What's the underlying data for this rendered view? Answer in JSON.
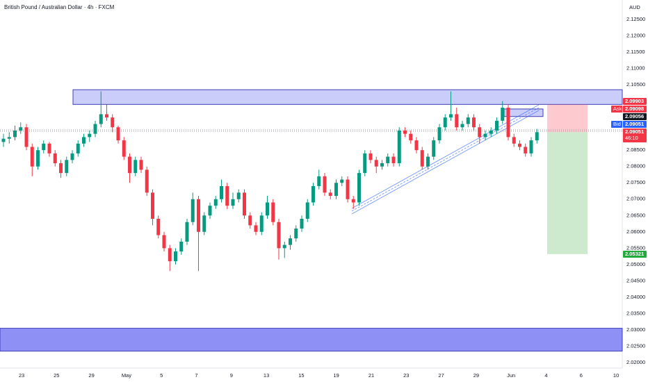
{
  "chart_data": {
    "type": "candlestick",
    "title": "British Pound / Australian Dollar · 4h · FXCM",
    "currency": "AUD",
    "up_color": "#089981",
    "down_color": "#f23645",
    "grid": false,
    "ylim": [
      2.02,
      2.125
    ],
    "yticks": [
      {
        "value": 2.125,
        "label": "2.12500"
      },
      {
        "value": 2.12,
        "label": "2.12000"
      },
      {
        "value": 2.115,
        "label": "2.11500"
      },
      {
        "value": 2.11,
        "label": "2.11000"
      },
      {
        "value": 2.105,
        "label": "2.10500"
      },
      {
        "value": 2.085,
        "label": "2.08500"
      },
      {
        "value": 2.08,
        "label": "2.08000"
      },
      {
        "value": 2.075,
        "label": "2.07500"
      },
      {
        "value": 2.07,
        "label": "2.07000"
      },
      {
        "value": 2.065,
        "label": "2.06500"
      },
      {
        "value": 2.06,
        "label": "2.06000"
      },
      {
        "value": 2.055,
        "label": "2.05500"
      },
      {
        "value": 2.05,
        "label": "2.05000"
      },
      {
        "value": 2.045,
        "label": "2.04500"
      },
      {
        "value": 2.04,
        "label": "2.04000"
      },
      {
        "value": 2.035,
        "label": "2.03500"
      },
      {
        "value": 2.03,
        "label": "2.03000"
      },
      {
        "value": 2.025,
        "label": "2.02500"
      },
      {
        "value": 2.02,
        "label": "2.02000"
      }
    ],
    "x_labels": [
      "23",
      "25",
      "29",
      "May",
      "5",
      "7",
      "9",
      "13",
      "15",
      "19",
      "21",
      "23",
      "27",
      "29",
      "Jun",
      "4",
      "6",
      "10"
    ],
    "candles": [
      [
        2.0875,
        2.09,
        2.086,
        2.0885
      ],
      [
        2.0885,
        2.0905,
        2.087,
        2.089
      ],
      [
        2.089,
        2.0925,
        2.088,
        2.091
      ],
      [
        2.091,
        2.0935,
        2.09,
        2.092
      ],
      [
        2.092,
        2.093,
        2.085,
        2.086
      ],
      [
        2.086,
        2.087,
        2.077,
        2.08
      ],
      [
        2.08,
        2.086,
        2.079,
        2.085
      ],
      [
        2.085,
        2.088,
        2.084,
        2.087
      ],
      [
        2.087,
        2.0875,
        2.083,
        2.084
      ],
      [
        2.084,
        2.085,
        2.08,
        2.081
      ],
      [
        2.081,
        2.082,
        2.0765,
        2.078
      ],
      [
        2.078,
        2.083,
        2.077,
        2.082
      ],
      [
        2.082,
        2.085,
        2.081,
        2.084
      ],
      [
        2.084,
        2.088,
        2.083,
        2.087
      ],
      [
        2.087,
        2.09,
        2.086,
        2.089
      ],
      [
        2.089,
        2.091,
        2.0875,
        2.09
      ],
      [
        2.09,
        2.094,
        2.089,
        2.093
      ],
      [
        2.093,
        2.103,
        2.092,
        2.096
      ],
      [
        2.096,
        2.099,
        2.094,
        2.095
      ],
      [
        2.095,
        2.096,
        2.0905,
        2.092
      ],
      [
        2.092,
        2.0925,
        2.087,
        2.088
      ],
      [
        2.088,
        2.089,
        2.082,
        2.083
      ],
      [
        2.083,
        2.084,
        2.075,
        2.078
      ],
      [
        2.078,
        2.083,
        2.077,
        2.082
      ],
      [
        2.082,
        2.083,
        2.078,
        2.079
      ],
      [
        2.079,
        2.08,
        2.071,
        2.072
      ],
      [
        2.072,
        2.073,
        2.062,
        2.064
      ],
      [
        2.064,
        2.065,
        2.058,
        2.059
      ],
      [
        2.059,
        2.06,
        2.054,
        2.055
      ],
      [
        2.055,
        2.056,
        2.048,
        2.051
      ],
      [
        2.051,
        2.055,
        2.05,
        2.054
      ],
      [
        2.054,
        2.058,
        2.053,
        2.057
      ],
      [
        2.057,
        2.064,
        2.056,
        2.063
      ],
      [
        2.063,
        2.072,
        2.062,
        2.07
      ],
      [
        2.07,
        2.071,
        2.048,
        2.06
      ],
      [
        2.06,
        2.066,
        2.059,
        2.065
      ],
      [
        2.065,
        2.069,
        2.064,
        2.068
      ],
      [
        2.068,
        2.071,
        2.067,
        2.07
      ],
      [
        2.07,
        2.076,
        2.069,
        2.074
      ],
      [
        2.074,
        2.075,
        2.067,
        2.068
      ],
      [
        2.068,
        2.072,
        2.067,
        2.07
      ],
      [
        2.07,
        2.073,
        2.069,
        2.072
      ],
      [
        2.072,
        2.073,
        2.064,
        2.065
      ],
      [
        2.065,
        2.066,
        2.061,
        2.062
      ],
      [
        2.062,
        2.063,
        2.059,
        2.06
      ],
      [
        2.06,
        2.066,
        2.059,
        2.065
      ],
      [
        2.065,
        2.071,
        2.064,
        2.069
      ],
      [
        2.069,
        2.07,
        2.062,
        2.063
      ],
      [
        2.063,
        2.064,
        2.0515,
        2.055
      ],
      [
        2.055,
        2.057,
        2.052,
        2.056
      ],
      [
        2.056,
        2.059,
        2.0545,
        2.058
      ],
      [
        2.058,
        2.062,
        2.057,
        2.061
      ],
      [
        2.061,
        2.065,
        2.06,
        2.064
      ],
      [
        2.064,
        2.07,
        2.063,
        2.069
      ],
      [
        2.069,
        2.075,
        2.068,
        2.074
      ],
      [
        2.074,
        2.079,
        2.073,
        2.077
      ],
      [
        2.077,
        2.078,
        2.071,
        2.072
      ],
      [
        2.072,
        2.073,
        2.07,
        2.071
      ],
      [
        2.071,
        2.076,
        2.07,
        2.075
      ],
      [
        2.075,
        2.077,
        2.074,
        2.076
      ],
      [
        2.076,
        2.077,
        2.069,
        2.07
      ],
      [
        2.07,
        2.071,
        2.067,
        2.069
      ],
      [
        2.069,
        2.079,
        2.068,
        2.078
      ],
      [
        2.078,
        2.085,
        2.077,
        2.084
      ],
      [
        2.084,
        2.085,
        2.081,
        2.082
      ],
      [
        2.082,
        2.083,
        2.078,
        2.08
      ],
      [
        2.08,
        2.082,
        2.079,
        2.081
      ],
      [
        2.081,
        2.084,
        2.08,
        2.083
      ],
      [
        2.083,
        2.084,
        2.08,
        2.081
      ],
      [
        2.081,
        2.092,
        2.08,
        2.091
      ],
      [
        2.091,
        2.092,
        2.089,
        2.09
      ],
      [
        2.09,
        2.091,
        2.087,
        2.088
      ],
      [
        2.088,
        2.089,
        2.084,
        2.085
      ],
      [
        2.085,
        2.086,
        2.079,
        2.08
      ],
      [
        2.08,
        2.084,
        2.079,
        2.083
      ],
      [
        2.083,
        2.089,
        2.082,
        2.088
      ],
      [
        2.088,
        2.093,
        2.087,
        2.092
      ],
      [
        2.092,
        2.096,
        2.091,
        2.095
      ],
      [
        2.095,
        2.103,
        2.094,
        2.096
      ],
      [
        2.096,
        2.098,
        2.091,
        2.092
      ],
      [
        2.092,
        2.094,
        2.091,
        2.093
      ],
      [
        2.093,
        2.096,
        2.092,
        2.095
      ],
      [
        2.095,
        2.096,
        2.091,
        2.092
      ],
      [
        2.092,
        2.093,
        2.087,
        2.089
      ],
      [
        2.089,
        2.091,
        2.088,
        2.09
      ],
      [
        2.09,
        2.092,
        2.089,
        2.091
      ],
      [
        2.091,
        2.095,
        2.09,
        2.094
      ],
      [
        2.094,
        2.1,
        2.093,
        2.098
      ],
      [
        2.098,
        2.099,
        2.088,
        2.089
      ],
      [
        2.089,
        2.09,
        2.086,
        2.087
      ],
      [
        2.087,
        2.088,
        2.085,
        2.086
      ],
      [
        2.086,
        2.087,
        2.083,
        2.084
      ],
      [
        2.084,
        2.089,
        2.083,
        2.088
      ],
      [
        2.088,
        2.0915,
        2.087,
        2.0905
      ]
    ],
    "zones": [
      {
        "top": 2.1035,
        "bottom": 2.099
      },
      {
        "top": 2.0305,
        "bottom": 2.0235
      },
      {
        "top": 2.0976,
        "bottom": 2.0953
      }
    ],
    "position": {
      "stop": 2.099,
      "entry": 2.0905,
      "target": 2.0532
    },
    "price_tags": [
      {
        "text": "2.09903"
      },
      {
        "prefix": "Ask",
        "text": "2.09098"
      },
      {
        "text": "2.09056"
      },
      {
        "prefix": "Bid",
        "text": "2.09051"
      },
      {
        "text": "2.09051",
        "timer": "46:10"
      },
      {
        "text": "2.05321"
      }
    ]
  }
}
